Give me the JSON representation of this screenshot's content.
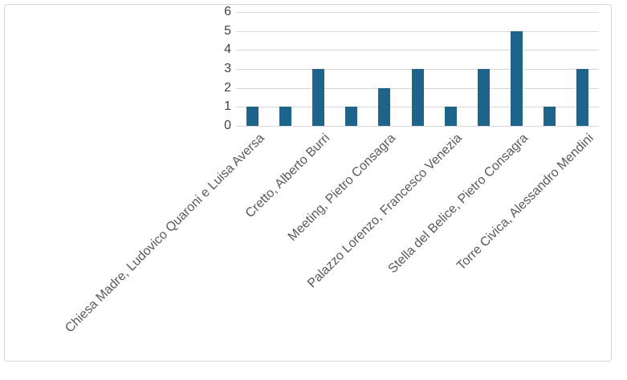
{
  "chart_data": {
    "type": "bar",
    "title": "",
    "xlabel": "",
    "ylabel": "",
    "bar_count": 11,
    "values": [
      1,
      1,
      3,
      1,
      2,
      3,
      1,
      3,
      5,
      1,
      3
    ],
    "x_tick_labels": [
      {
        "bar_index": 0,
        "label": "Chiesa Madre, Ludovico Quaroni e Luisa Aversa"
      },
      {
        "bar_index": 2,
        "label": "Cretto, Alberto Burri"
      },
      {
        "bar_index": 4,
        "label": "Meeting, Pietro Consagra"
      },
      {
        "bar_index": 6,
        "label": "Palazzo Lorenzo, Francesco Venezia"
      },
      {
        "bar_index": 8,
        "label": "Stella del Belice, Pietro Consagra"
      },
      {
        "bar_index": 10,
        "label": "Torre Civica, Alessandro Mendini"
      }
    ],
    "x_label_rotation_deg": 45,
    "y_ticks": [
      0,
      1,
      2,
      3,
      4,
      5,
      6
    ],
    "ylim": [
      0,
      6
    ],
    "grid": true,
    "legend": false,
    "colors": {
      "bar": "#1E648A",
      "gridline": "#D9D9D9",
      "y_tick_text": "#404040",
      "x_tick_text": "#595959",
      "card_border": "#D6D6D6",
      "background": "#FFFFFF"
    }
  }
}
